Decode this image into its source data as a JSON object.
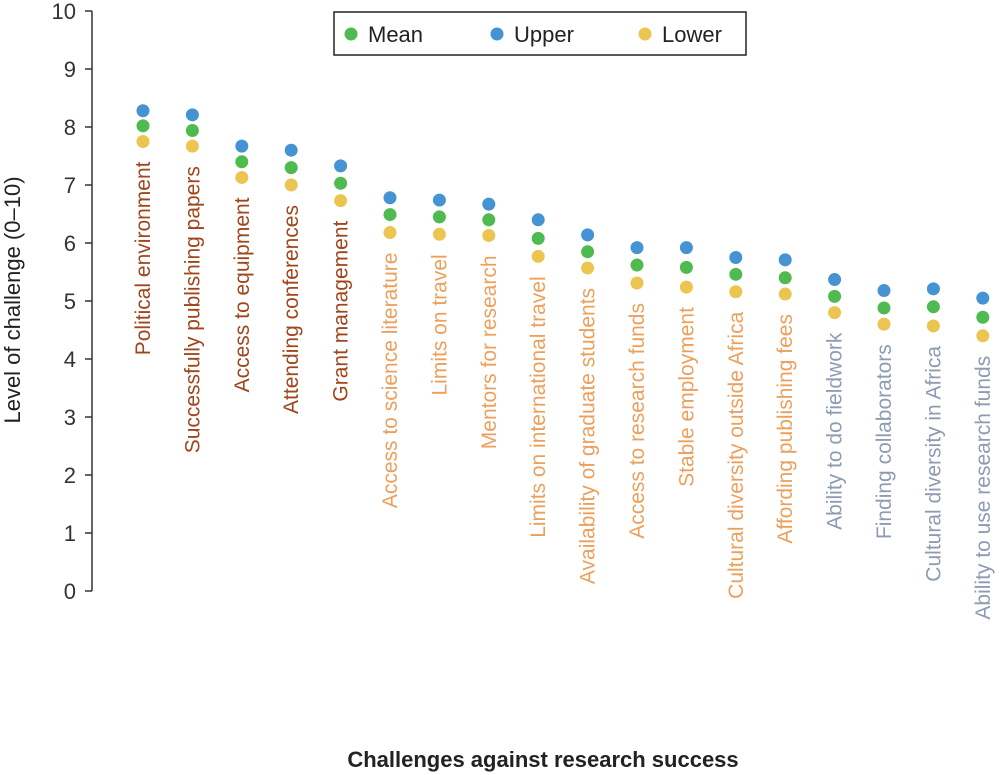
{
  "chart_data": {
    "type": "scatter",
    "title": "",
    "xlabel": "Challenges against research success",
    "ylabel": "Level of challenge (0–10)",
    "ylim": [
      0,
      10
    ],
    "yticks": [
      "0",
      "1",
      "2",
      "3",
      "4",
      "5",
      "6",
      "7",
      "8",
      "9",
      "10"
    ],
    "grid": false,
    "legend_position": "top-right",
    "categories": [
      "Political environment",
      "Successfully publishing papers",
      "Access to equipment",
      "Attending conferences",
      "Grant management",
      "Access to science literature",
      "Limits on travel",
      "Mentors for research",
      "Limits on international travel",
      "Availability of graduate students",
      "Access to research funds",
      "Stable employment",
      "Cultural diversity outside Africa",
      "Affording publishing fees",
      "Ability to do fieldwork",
      "Finding collaborators",
      "Cultural diversity in Africa",
      "Ability to use research funds"
    ],
    "category_groups": [
      1,
      1,
      1,
      1,
      1,
      2,
      2,
      2,
      2,
      2,
      2,
      2,
      2,
      2,
      3,
      3,
      3,
      3
    ],
    "group_colors": {
      "1": "#a0461c",
      "2": "#eca05c",
      "3": "#8e9bb2"
    },
    "series": [
      {
        "name": "Mean",
        "color": "#4fba4f",
        "values": [
          8.02,
          7.94,
          7.4,
          7.3,
          7.03,
          6.49,
          6.45,
          6.4,
          6.08,
          5.85,
          5.62,
          5.58,
          5.46,
          5.4,
          5.08,
          4.88,
          4.9,
          4.72
        ]
      },
      {
        "name": "Upper",
        "color": "#4593d2",
        "values": [
          8.28,
          8.21,
          7.67,
          7.6,
          7.33,
          6.78,
          6.74,
          6.67,
          6.4,
          6.14,
          5.92,
          5.92,
          5.75,
          5.71,
          5.37,
          5.18,
          5.21,
          5.05
        ]
      },
      {
        "name": "Lower",
        "color": "#ecc450",
        "values": [
          7.75,
          7.67,
          7.13,
          7.0,
          6.73,
          6.18,
          6.15,
          6.13,
          5.77,
          5.57,
          5.31,
          5.24,
          5.16,
          5.12,
          4.8,
          4.6,
          4.57,
          4.4
        ]
      }
    ]
  }
}
